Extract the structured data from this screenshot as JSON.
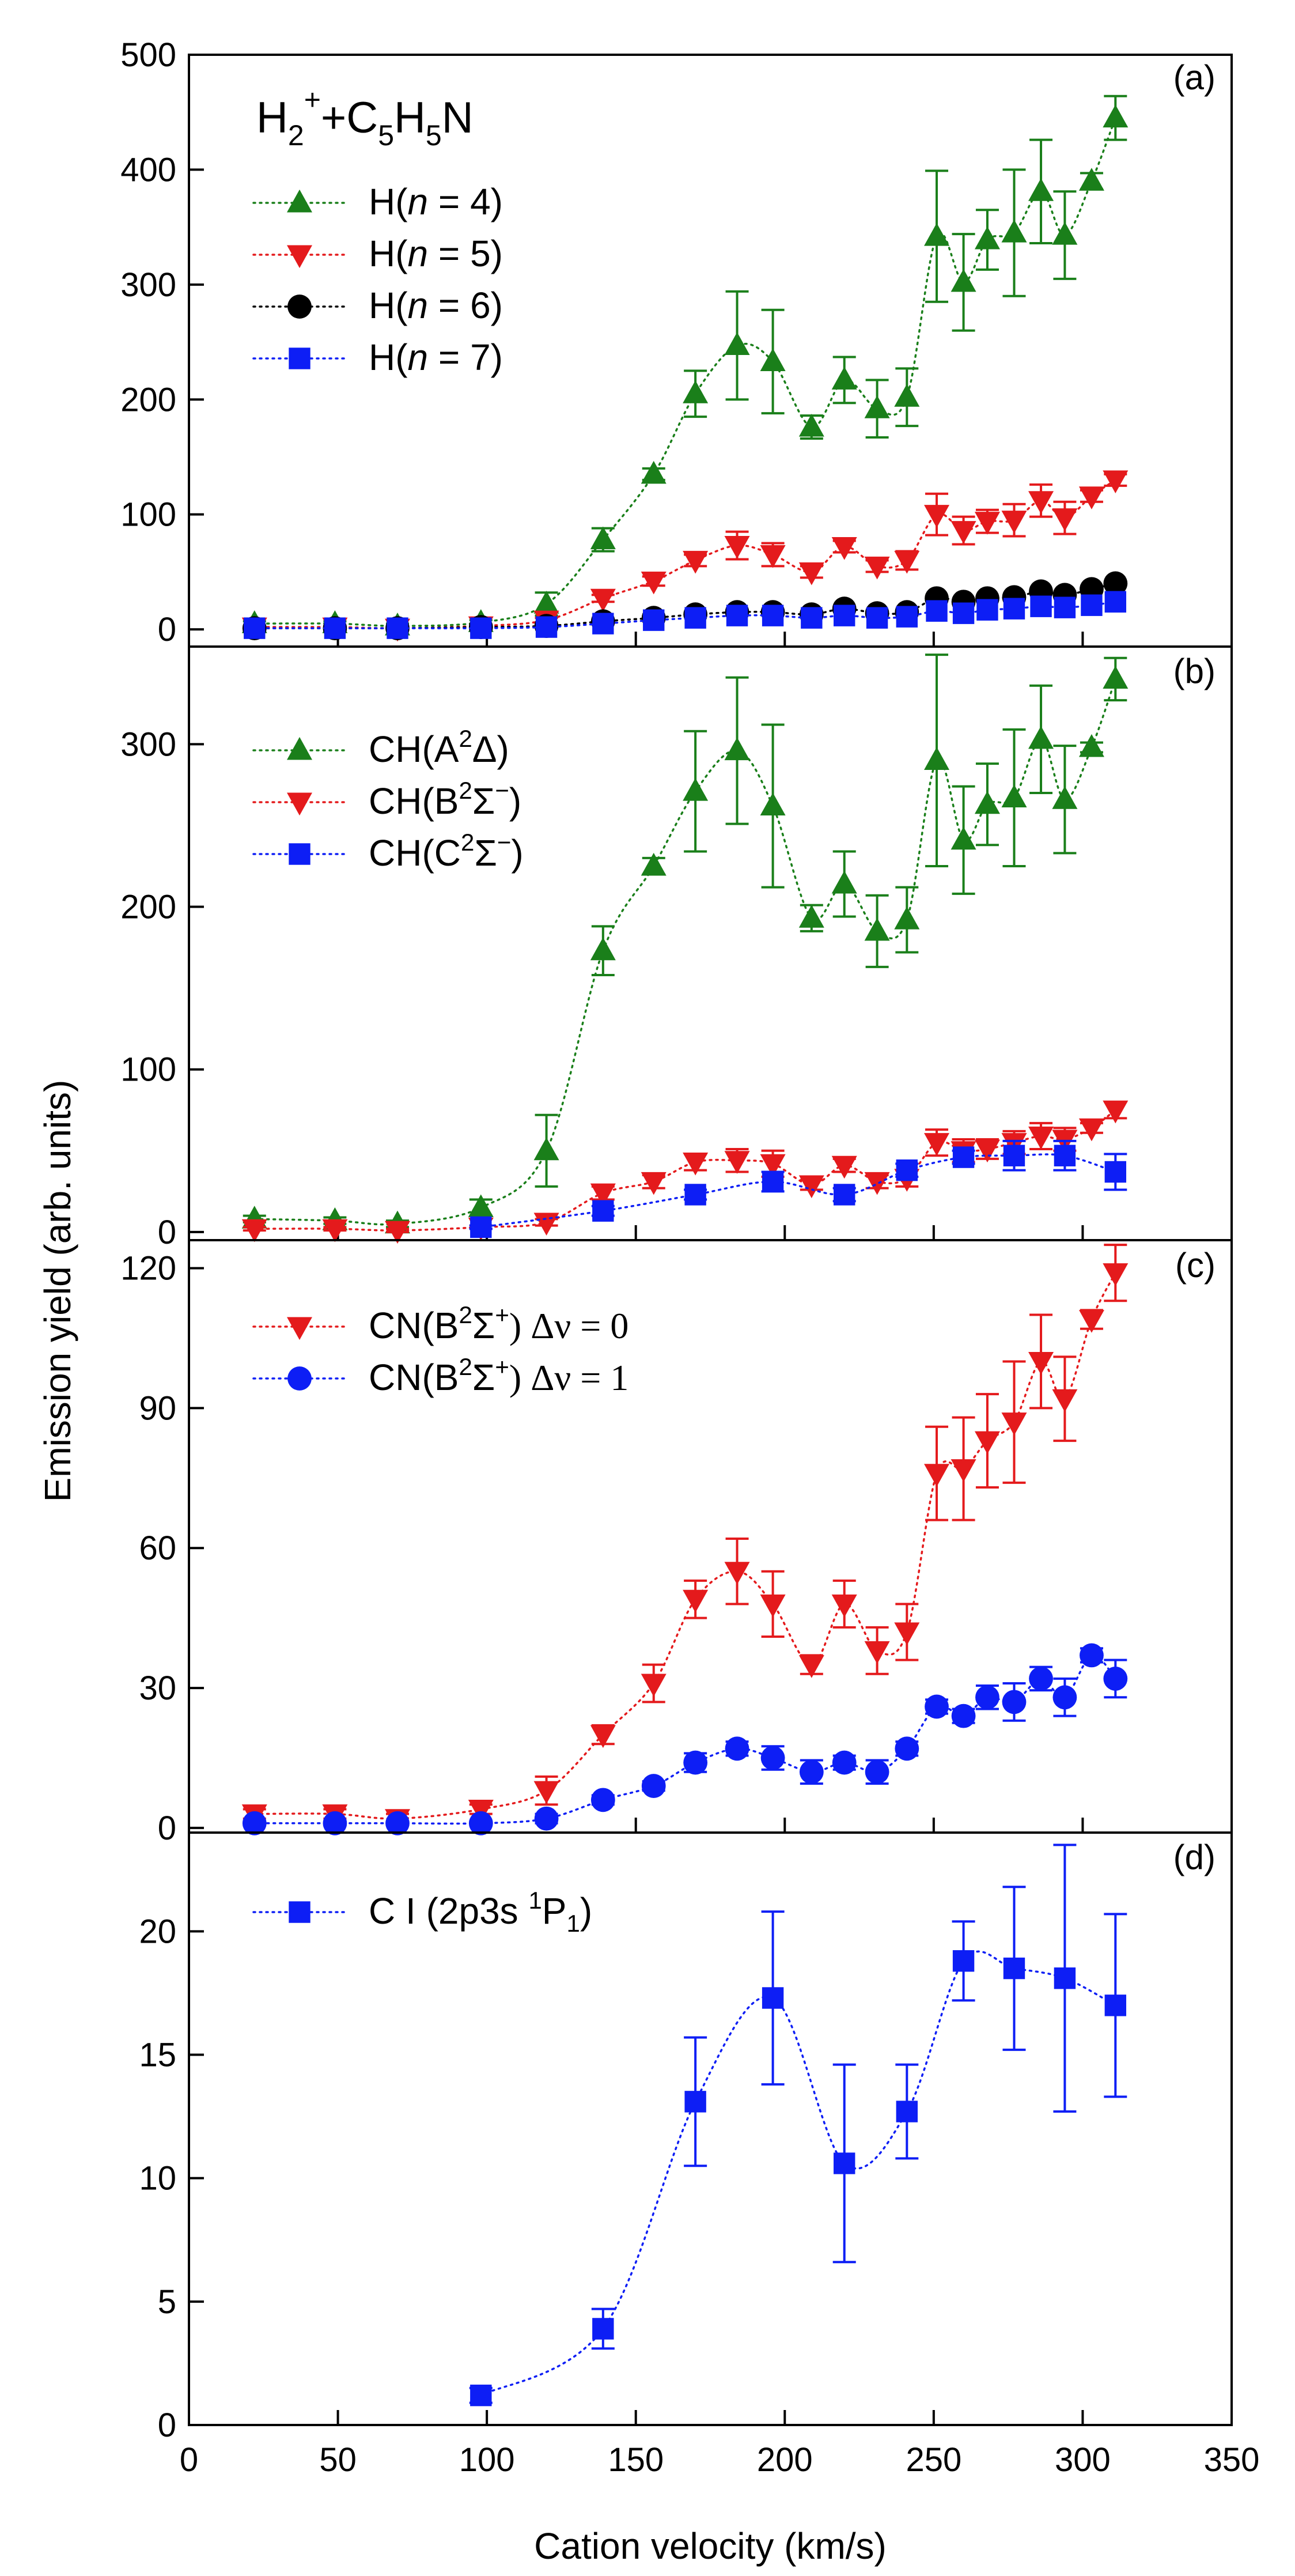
{
  "chart_data": {
    "type": "scatter",
    "xlabel": "Cation velocity (km/s)",
    "ylabel": "Emission yield (arb. units)",
    "xlim": [
      0,
      350
    ],
    "xticks": [
      0,
      50,
      100,
      150,
      200,
      250,
      300,
      350
    ],
    "shared_x_axis": true,
    "panels": [
      {
        "label": "(a)",
        "title": "H2++C5H5N",
        "ylim": [
          -15,
          500
        ],
        "yticks": [
          0,
          100,
          200,
          300,
          400,
          500
        ],
        "series": [
          {
            "name": "H(n = 4)",
            "color": "#1a7f1a",
            "marker": "triangle-up",
            "x": [
              22,
              49,
              70,
              98,
              120,
              139,
              156,
              170,
              184,
              196,
              209,
              220,
              231,
              241,
              251,
              260,
              268,
              277,
              286,
              294,
              303,
              311
            ],
            "y": [
              5,
              5,
              3,
              6,
              22,
              78,
              135,
              205,
              247,
              233,
              176,
              217,
              192,
              202,
              342,
              302,
              339,
              345,
              381,
              343,
              390,
              445
            ],
            "err": [
              2,
              2,
              2,
              2,
              10,
              10,
              5,
              20,
              47,
              45,
              10,
              20,
              25,
              25,
              57,
              42,
              26,
              55,
              45,
              38,
              7,
              19
            ]
          },
          {
            "name": "H(n = 5)",
            "color": "#e41a1c",
            "marker": "triangle-down",
            "x": [
              22,
              49,
              70,
              98,
              120,
              139,
              156,
              170,
              184,
              196,
              209,
              220,
              231,
              241,
              251,
              260,
              268,
              277,
              286,
              294,
              303,
              311
            ],
            "y": [
              2,
              2,
              1,
              3,
              8,
              27,
              42,
              60,
              73,
              65,
              50,
              72,
              55,
              60,
              100,
              86,
              94,
              95,
              112,
              97,
              116,
              130
            ],
            "err": [
              1,
              1,
              1,
              1,
              2,
              3,
              4,
              5,
              12,
              10,
              5,
              5,
              5,
              8,
              18,
              12,
              10,
              14,
              14,
              14,
              5,
              5
            ]
          },
          {
            "name": "H(n = 6)",
            "color": "#000000",
            "marker": "circle",
            "x": [
              22,
              49,
              70,
              98,
              120,
              139,
              156,
              170,
              184,
              196,
              209,
              220,
              231,
              241,
              251,
              260,
              268,
              277,
              286,
              294,
              303,
              311
            ],
            "y": [
              1,
              1,
              1,
              2,
              3,
              7,
              10,
              13,
              15,
              15,
              13,
              18,
              14,
              15,
              27,
              24,
              27,
              28,
              33,
              30,
              35,
              40
            ],
            "err": [
              0,
              0,
              0,
              0,
              0,
              0,
              0,
              0,
              0,
              0,
              0,
              0,
              0,
              0,
              0,
              0,
              0,
              0,
              0,
              0,
              0,
              0
            ]
          },
          {
            "name": "H(n = 7)",
            "color": "#0d1ef5",
            "marker": "square",
            "x": [
              22,
              49,
              70,
              98,
              120,
              139,
              156,
              170,
              184,
              196,
              209,
              220,
              231,
              241,
              251,
              260,
              268,
              277,
              286,
              294,
              303,
              311
            ],
            "y": [
              1,
              1,
              1,
              1,
              2,
              5,
              8,
              10,
              12,
              12,
              10,
              12,
              10,
              11,
              16,
              14,
              17,
              18,
              20,
              19,
              21,
              24
            ],
            "err": [
              0,
              0,
              0,
              0,
              0,
              0,
              0,
              0,
              0,
              0,
              0,
              0,
              0,
              0,
              0,
              0,
              0,
              0,
              0,
              0,
              0,
              0
            ]
          }
        ]
      },
      {
        "label": "(b)",
        "ylim": [
          -5,
          360
        ],
        "yticks": [
          0,
          100,
          200,
          300
        ],
        "series": [
          {
            "name": "CH(A2Δ)",
            "color": "#1a7f1a",
            "marker": "triangle-up",
            "x": [
              22,
              49,
              70,
              98,
              120,
              139,
              156,
              170,
              184,
              196,
              209,
              220,
              231,
              241,
              251,
              260,
              268,
              277,
              286,
              294,
              303,
              311
            ],
            "y": [
              8,
              7,
              5,
              15,
              50,
              173,
              225,
              271,
              296,
              262,
              193,
              214,
              185,
              192,
              290,
              241,
              263,
              267,
              303,
              266,
              298,
              340
            ],
            "err": [
              2,
              2,
              2,
              5,
              22,
              15,
              5,
              37,
              45,
              50,
              8,
              20,
              22,
              20,
              65,
              33,
              25,
              42,
              33,
              33,
              3,
              13
            ]
          },
          {
            "name": "CH(B2Σ−)",
            "color": "#e41a1c",
            "marker": "triangle-down",
            "x": [
              22,
              49,
              70,
              98,
              120,
              139,
              156,
              170,
              184,
              196,
              209,
              220,
              231,
              241,
              251,
              260,
              268,
              277,
              286,
              294,
              303,
              311
            ],
            "y": [
              2,
              2,
              1,
              3,
              6,
              24,
              31,
              43,
              44,
              42,
              29,
              41,
              31,
              33,
              55,
              50,
              51,
              55,
              59,
              57,
              64,
              75
            ],
            "err": [
              1,
              1,
              1,
              1,
              2,
              4,
              4,
              5,
              7,
              8,
              3,
              4,
              4,
              5,
              8,
              7,
              6,
              7,
              8,
              7,
              3,
              5
            ]
          },
          {
            "name": "CH(C2Σ−)",
            "color": "#0d1ef5",
            "marker": "square",
            "x": [
              98,
              139,
              170,
              196,
              220,
              241,
              260,
              277,
              294,
              311
            ],
            "y": [
              3,
              13,
              23,
              31,
              23,
              38,
              46,
              47,
              47,
              37
            ],
            "err": [
              1,
              3,
              3,
              6,
              4,
              4,
              4,
              9,
              9,
              11
            ]
          }
        ]
      },
      {
        "label": "(c)",
        "ylim": [
          -1,
          126
        ],
        "yticks": [
          0,
          30,
          60,
          90,
          120
        ],
        "series": [
          {
            "name": "CN(B2Σ+) Δν = 0",
            "color": "#e41a1c",
            "marker": "triangle-down",
            "x": [
              22,
              49,
              70,
              98,
              120,
              139,
              156,
              170,
              184,
              196,
              209,
              220,
              231,
              241,
              251,
              260,
              268,
              277,
              286,
              294,
              303,
              311
            ],
            "y": [
              3,
              3,
              2,
              4,
              8,
              20,
              31,
              49,
              55,
              48,
              35,
              48,
              38,
              42,
              76,
              77,
              83,
              87,
              100,
              92,
              109,
              119
            ],
            "err": [
              1,
              1,
              1,
              1,
              3,
              2,
              4,
              4,
              7,
              7,
              2,
              5,
              5,
              6,
              10,
              11,
              10,
              13,
              10,
              9,
              2,
              6
            ]
          },
          {
            "name": "CN(B2Σ+) Δν = 1",
            "color": "#0d1ef5",
            "marker": "circle",
            "x": [
              22,
              49,
              70,
              98,
              120,
              139,
              156,
              170,
              184,
              196,
              209,
              220,
              231,
              241,
              251,
              260,
              268,
              277,
              286,
              294,
              303,
              311
            ],
            "y": [
              1,
              1,
              1,
              1,
              2,
              6,
              9,
              14,
              17,
              15,
              12,
              14,
              12,
              17,
              26,
              24,
              28,
              27,
              32,
              28,
              37,
              32
            ],
            "err": [
              0.5,
              0.5,
              0.5,
              0.5,
              1,
              1,
              1,
              2,
              1.5,
              2.5,
              2.5,
              1.5,
              2.5,
              1.5,
              1.5,
              1.5,
              2.5,
              4,
              2.5,
              4,
              1.5,
              4
            ]
          }
        ]
      },
      {
        "label": "(d)",
        "ylim": [
          0,
          24
        ],
        "yticks": [
          0,
          5,
          10,
          15,
          20
        ],
        "series": [
          {
            "name": "C I (2p3s 1P1)",
            "color": "#0d1ef5",
            "marker": "square",
            "x": [
              98,
              139,
              170,
              196,
              220,
              241,
              260,
              277,
              294,
              311
            ],
            "y": [
              1.2,
              3.9,
              13.1,
              17.3,
              10.6,
              12.7,
              18.8,
              18.5,
              18.1,
              17.0
            ],
            "err": [
              0.3,
              0.8,
              2.6,
              3.5,
              4.0,
              1.9,
              1.6,
              3.3,
              5.4,
              3.7
            ]
          }
        ]
      }
    ]
  },
  "labels": {
    "xlabel": "Cation velocity (km/s)",
    "ylabel": "Emission yield (arb. units)",
    "panel_a": "(a)",
    "panel_b": "(b)",
    "panel_c": "(c)",
    "panel_d": "(d)",
    "title_a_h": "H",
    "title_a_sub1": "2",
    "title_a_sup": "+",
    "title_a_c": "+C",
    "title_a_sub2": "5",
    "title_a_h2": "H",
    "title_a_sub3": "5",
    "title_a_n": "N",
    "leg_a1_pre": "H(",
    "leg_a1_n": "n",
    "leg_a1_post": " = 4)",
    "leg_a2_pre": "H(",
    "leg_a2_n": "n",
    "leg_a2_post": " = 5)",
    "leg_a3_pre": "H(",
    "leg_a3_n": "n",
    "leg_a3_post": " = 6)",
    "leg_a4_pre": "H(",
    "leg_a4_n": "n",
    "leg_a4_post": " = 7)",
    "leg_b1_pre": "CH(A",
    "leg_b1_sup": "2",
    "leg_b1_post": "Δ)",
    "leg_b2_pre": "CH(B",
    "leg_b2_sup": "2",
    "leg_b2_post": "Σ",
    "leg_b2_sup2": "−",
    "leg_b2_end": ")",
    "leg_b3_pre": "CH(C",
    "leg_b3_sup": "2",
    "leg_b3_post": "Σ",
    "leg_b3_sup2": "−",
    "leg_b3_end": ")",
    "leg_c1_pre": "CN(B",
    "leg_c1_sup": "2",
    "leg_c1_post": "Σ",
    "leg_c1_sup2": "+",
    "leg_c1_end": ") Δν = 0",
    "leg_c2_pre": "CN(B",
    "leg_c2_sup": "2",
    "leg_c2_post": "Σ",
    "leg_c2_sup2": "+",
    "leg_c2_end": ") Δν = 1",
    "leg_d1_pre": "C I (2p3s ",
    "leg_d1_sup": "1",
    "leg_d1_post": "P",
    "leg_d1_sub": "1",
    "leg_d1_end": ")"
  }
}
